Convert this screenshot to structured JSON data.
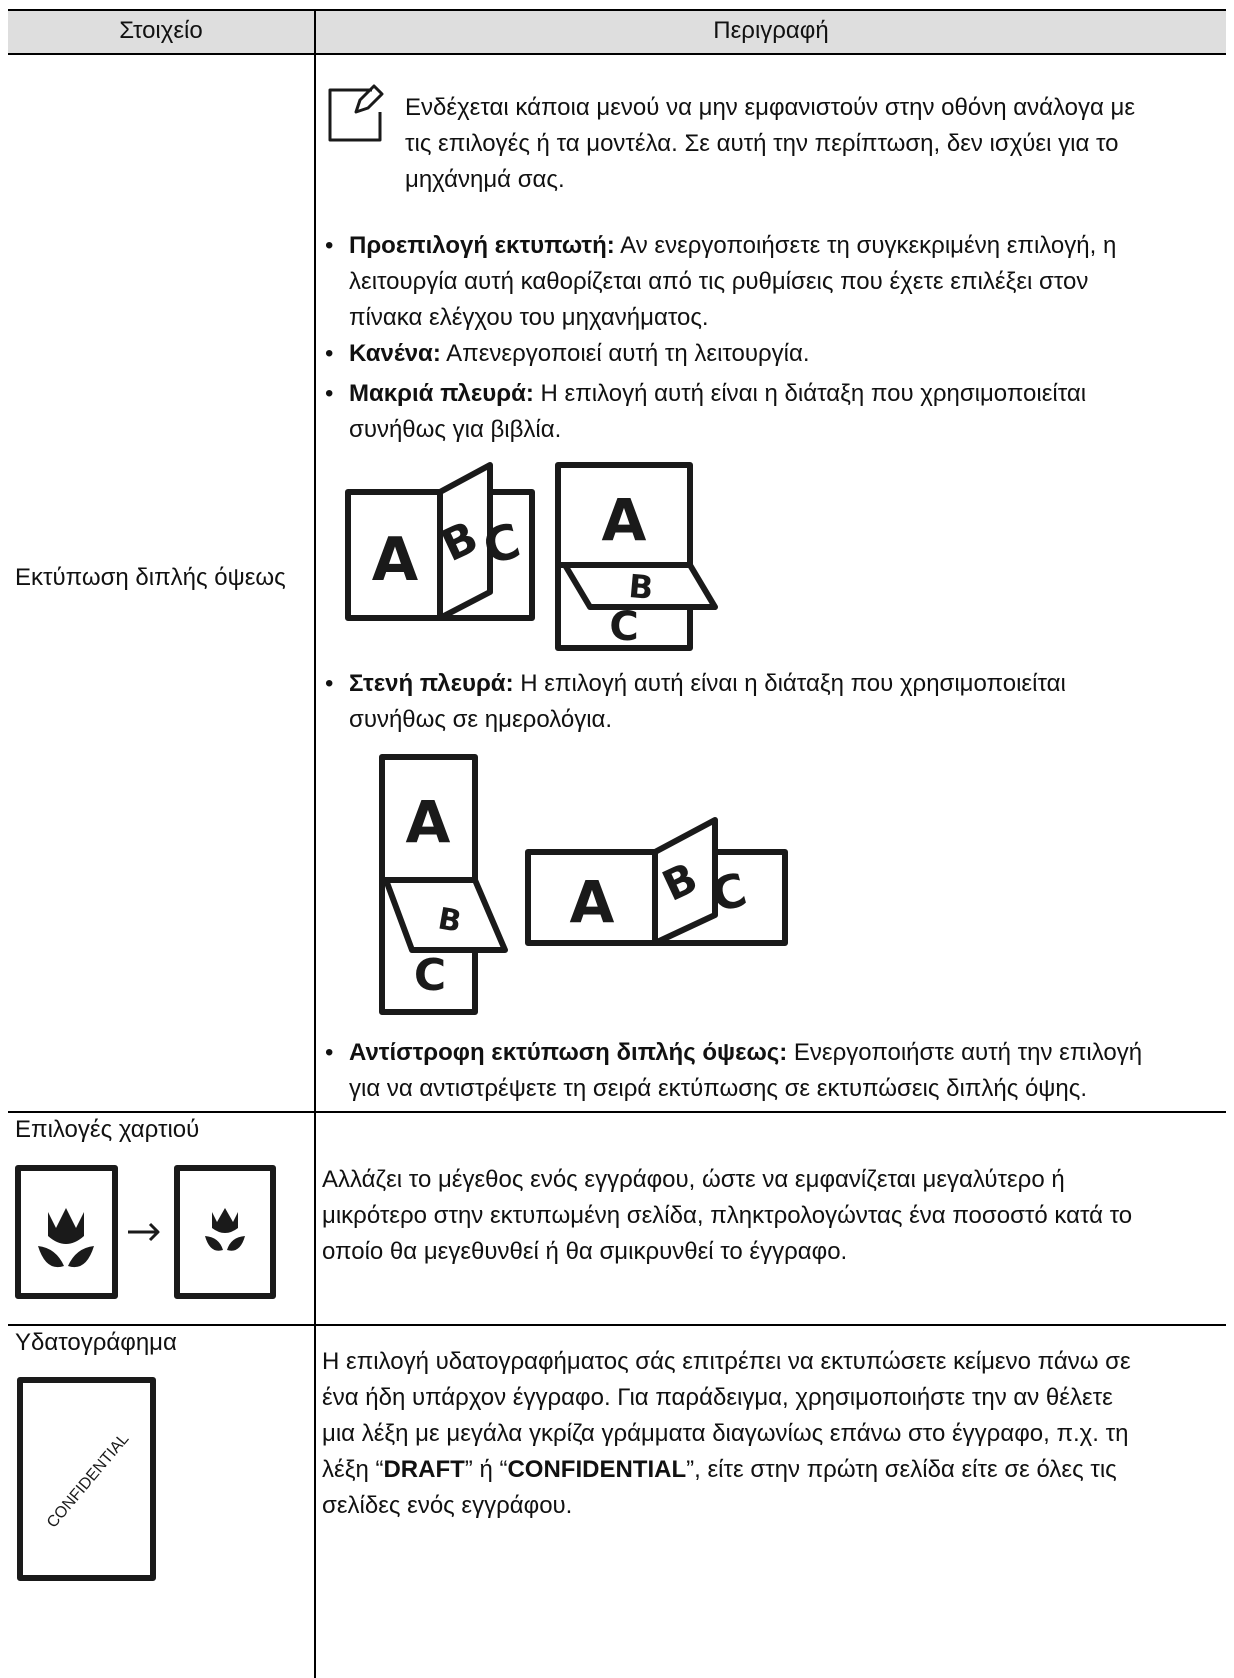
{
  "table": {
    "header": [
      "Στοιχείο",
      "Περιγραφή"
    ],
    "rows": [
      {
        "item": "Εκτύπωση διπλής όψεως",
        "note": "Ενδέχεται κάποια μενού να μην εμφανιστούν στην οθόνη ανάλογα με τις επιλογές ή τα μοντέλα. Σε αυτή την περίπτωση, δεν ισχύει για το μηχάνημά σας.",
        "bullets": [
          {
            "term": "Προεπιλογή εκτυπωτή:",
            "text": " Αν ενεργοποιήσετε τη συγκεκριμένη επιλογή, η λειτουργία αυτή καθορίζεται από τις ρυθμίσεις που έχετε επιλέξει στον πίνακα ελέγχου του μηχανήματος."
          },
          {
            "term": "Κανένα:",
            "text": " Απενεργοποιεί αυτή τη λειτουργία."
          },
          {
            "term": "Μακριά πλευρά:",
            "text": " Η επιλογή αυτή είναι η διάταξη που χρησιμοποιείται συνήθως για βιβλία."
          },
          {
            "term": "Στενή πλευρά:",
            "text": " Η επιλογή αυτή είναι η διάταξη που χρησιμοποιείται συνήθως σε ημερολόγια."
          },
          {
            "term": "Αντίστροφη εκτύπωση διπλής όψεως:",
            "text": " Ενεργοποιήστε αυτή την επιλογή για να αντιστρέψετε τη σειρά εκτύπωσης σε εκτυπώσεις διπλής όψης."
          }
        ],
        "illustration_letters": [
          "A",
          "B",
          "C"
        ]
      },
      {
        "item": "Επιλογές χαρτιού",
        "description": "Αλλάζει το μέγεθος ενός εγγράφου, ώστε να εμφανίζεται μεγαλύτερο ή μικρότερο στην εκτυπωμένη σελίδα, πληκτρολογώντας ένα ποσοστό κατά το οποίο θα μεγεθυνθεί ή θα σμικρυνθεί το έγγραφο."
      },
      {
        "item": "Υδατογράφημα",
        "icon_text": "CONFIDENTIAL",
        "description": [
          "Η επιλογή υδατογραφήματος σάς επιτρέπει να εκτυπώσετε κείμενο πάνω σε ένα ήδη υπάρχον έγγραφο. Για παράδειγμα, χρησιμοποιήστε την αν θέλετε μια λέξη με μεγάλα γκρίζα γράμματα διαγωνίως επάνω στο έγγραφο, π.χ. τη λέξη “",
          "DRAFT",
          "” ή “",
          "CONFIDENTIAL",
          "”, είτε στην πρώτη σελίδα είτε σε όλες τις σελίδες ενός εγγράφου."
        ]
      }
    ]
  }
}
